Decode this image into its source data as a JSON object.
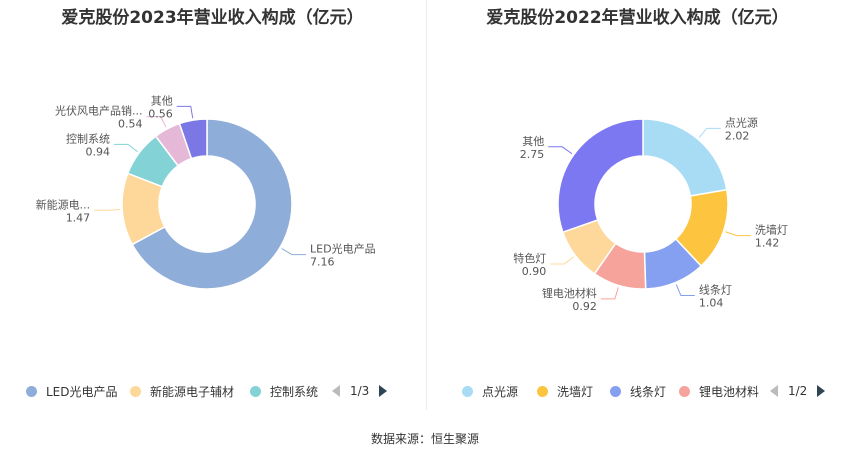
{
  "source_label": "数据来源：恒生聚源",
  "chart_data": [
    {
      "type": "pie",
      "donut": true,
      "title": "爱克股份2023年营业收入构成（亿元）",
      "slices": [
        {
          "name": "LED光电产品",
          "label": "LED光电产品",
          "value": 7.16,
          "value_text": "7.16",
          "color": "#8eadd9"
        },
        {
          "name": "新能源电子辅材",
          "label": "新能源电...",
          "value": 1.47,
          "value_text": "1.47",
          "color": "#fdd89a"
        },
        {
          "name": "控制系统",
          "label": "控制系统",
          "value": 0.94,
          "value_text": "0.94",
          "color": "#83d3d6"
        },
        {
          "name": "光伏风电产品销售",
          "label": "光伏风电产品销...",
          "value": 0.54,
          "value_text": "0.54",
          "color": "#e6b8d7"
        },
        {
          "name": "其他",
          "label": "其他",
          "value": 0.56,
          "value_text": "0.56",
          "color": "#7b78e6"
        }
      ],
      "legend": {
        "position": "bottom",
        "items": [
          "LED光电产品",
          "新能源电子辅材",
          "控制系统"
        ],
        "colors": [
          "#8eadd9",
          "#fdd89a",
          "#83d3d6"
        ],
        "page": "1/3"
      }
    },
    {
      "type": "pie",
      "donut": true,
      "title": "爱克股份2022年营业收入构成（亿元）",
      "slices": [
        {
          "name": "点光源",
          "label": "点光源",
          "value": 2.02,
          "value_text": "2.02",
          "color": "#a8dcf5"
        },
        {
          "name": "洗墙灯",
          "label": "洗墙灯",
          "value": 1.42,
          "value_text": "1.42",
          "color": "#fdc43f"
        },
        {
          "name": "线条灯",
          "label": "线条灯",
          "value": 1.04,
          "value_text": "1.04",
          "color": "#859ff1"
        },
        {
          "name": "锂电池材料",
          "label": "锂电池材料",
          "value": 0.92,
          "value_text": "0.92",
          "color": "#f6a39b"
        },
        {
          "name": "特色灯",
          "label": "特色灯",
          "value": 0.9,
          "value_text": "0.90",
          "color": "#fdd89a"
        },
        {
          "name": "其他",
          "label": "其他",
          "value": 2.75,
          "value_text": "2.75",
          "color": "#7b78f2"
        }
      ],
      "legend": {
        "position": "bottom",
        "items": [
          "点光源",
          "洗墙灯",
          "线条灯",
          "锂电池材料"
        ],
        "colors": [
          "#a8dcf5",
          "#fdc43f",
          "#859ff1",
          "#f6a39b"
        ],
        "page": "1/2"
      }
    }
  ]
}
